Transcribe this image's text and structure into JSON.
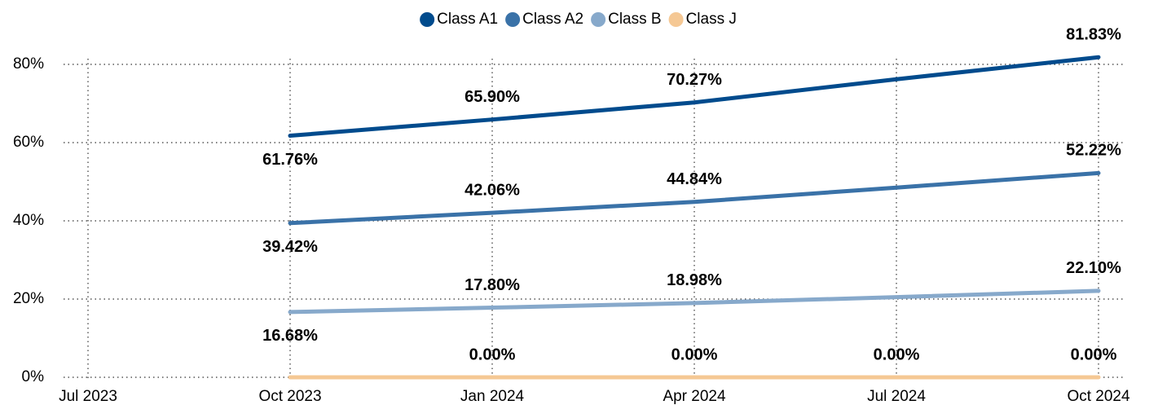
{
  "chart_data": {
    "type": "line",
    "x": [
      "2023-10",
      "2024-01",
      "2024-04",
      "2024-07",
      "2024-10"
    ],
    "series": [
      {
        "name": "Class A1",
        "color": "#004b8d",
        "values": [
          61.76,
          65.9,
          70.27,
          76.2,
          81.83
        ],
        "value_labels": [
          "61.76%",
          "65.90%",
          "70.27%",
          null,
          "81.83%"
        ]
      },
      {
        "name": "Class A2",
        "color": "#3a72a8",
        "values": [
          39.42,
          42.06,
          44.84,
          48.5,
          52.22
        ],
        "value_labels": [
          "39.42%",
          "42.06%",
          "44.84%",
          null,
          "52.22%"
        ]
      },
      {
        "name": "Class B",
        "color": "#87a9cb",
        "values": [
          16.68,
          17.8,
          18.98,
          20.5,
          22.1
        ],
        "value_labels": [
          "16.68%",
          "17.80%",
          "18.98%",
          null,
          "22.10%"
        ]
      },
      {
        "name": "Class J",
        "color": "#f5c894",
        "values": [
          0,
          0,
          0,
          0,
          0
        ],
        "value_labels": [
          null,
          "0.00%",
          "0.00%",
          "0.00%",
          "0.00%"
        ]
      }
    ],
    "xlim": [
      "2023-07",
      "2024-10"
    ],
    "xticks": [
      {
        "value": "2023-07",
        "label": "Jul 2023"
      },
      {
        "value": "2023-10",
        "label": "Oct 2023"
      },
      {
        "value": "2024-01",
        "label": "Jan 2024"
      },
      {
        "value": "2024-04",
        "label": "Apr 2024"
      },
      {
        "value": "2024-07",
        "label": "Jul 2024"
      },
      {
        "value": "2024-10",
        "label": "Oct 2024"
      }
    ],
    "ylim": [
      0,
      80
    ],
    "yticks": [
      {
        "value": 0,
        "label": "0%"
      },
      {
        "value": 20,
        "label": "20%"
      },
      {
        "value": 40,
        "label": "40%"
      },
      {
        "value": 60,
        "label": "60%"
      },
      {
        "value": 80,
        "label": "80%"
      }
    ],
    "grid": true,
    "legend": "top"
  }
}
